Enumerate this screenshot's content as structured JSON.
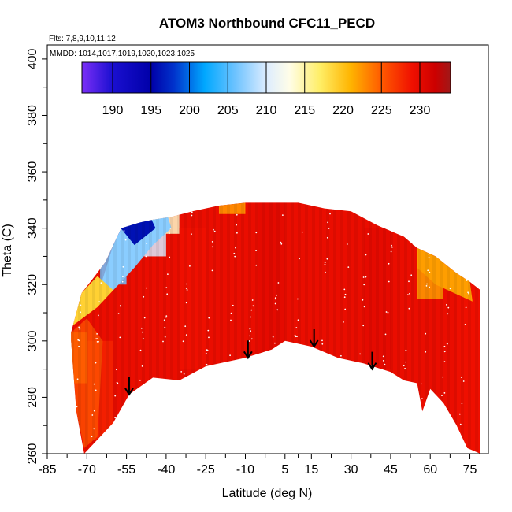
{
  "chart_data": {
    "type": "heatmap",
    "title": "ATOM3 Northbound CFC11_PECD",
    "flights_note": "Flts: 7,8,9,10,11,12",
    "dates_note": "MMDD: 1014,1017,1019,1020,1023,1025",
    "xlabel": "Latitude (deg N)",
    "ylabel": "Theta (C)",
    "xlim": [
      -85,
      82
    ],
    "ylim": [
      260,
      405
    ],
    "x_ticks": [
      -85,
      -70,
      -55,
      -40,
      -25,
      -10,
      5,
      15,
      30,
      45,
      60,
      75
    ],
    "y_ticks": [
      260,
      280,
      300,
      320,
      340,
      360,
      380,
      400
    ],
    "colorbar": {
      "min": 186,
      "max": 234,
      "tick_values": [
        190,
        195,
        200,
        205,
        210,
        215,
        220,
        225,
        230
      ],
      "tick_labels": [
        "190",
        "195",
        "200",
        "205",
        "210",
        "215",
        "220",
        "225",
        "230"
      ],
      "stops": [
        [
          186,
          "#7b2ff7"
        ],
        [
          190,
          "#1a0fd0"
        ],
        [
          195,
          "#0000a8"
        ],
        [
          198,
          "#0033cc"
        ],
        [
          202,
          "#00a8ff"
        ],
        [
          206,
          "#6ec3ff"
        ],
        [
          210,
          "#dcecff"
        ],
        [
          213,
          "#fffde8"
        ],
        [
          217,
          "#ffee66"
        ],
        [
          221,
          "#ffb400"
        ],
        [
          225,
          "#ff5a00"
        ],
        [
          229,
          "#f01000"
        ],
        [
          232,
          "#cc0000"
        ],
        [
          234,
          "#a01818"
        ]
      ]
    },
    "data_envelope": {
      "upper_theta": [
        [
          -76,
          303
        ],
        [
          -72,
          317
        ],
        [
          -67,
          323
        ],
        [
          -63,
          328
        ],
        [
          -60,
          334
        ],
        [
          -57,
          340
        ],
        [
          -50,
          342
        ],
        [
          -45,
          343
        ],
        [
          -38,
          344
        ],
        [
          -30,
          346
        ],
        [
          -20,
          348
        ],
        [
          -10,
          349
        ],
        [
          0,
          349
        ],
        [
          10,
          349
        ],
        [
          20,
          347
        ],
        [
          30,
          346
        ],
        [
          40,
          341
        ],
        [
          50,
          337
        ],
        [
          55,
          333
        ],
        [
          62,
          330
        ],
        [
          70,
          324
        ],
        [
          75,
          321
        ],
        [
          79,
          318
        ]
      ],
      "lower_theta": [
        [
          -76,
          300
        ],
        [
          -74,
          275
        ],
        [
          -71,
          260
        ],
        [
          -66,
          265
        ],
        [
          -60,
          271
        ],
        [
          -54,
          281
        ],
        [
          -45,
          287
        ],
        [
          -35,
          286
        ],
        [
          -25,
          291
        ],
        [
          -10,
          294
        ],
        [
          0,
          297
        ],
        [
          5,
          300
        ],
        [
          10,
          299
        ],
        [
          15,
          298
        ],
        [
          25,
          294
        ],
        [
          35,
          292
        ],
        [
          45,
          289
        ],
        [
          50,
          286
        ],
        [
          55,
          285
        ],
        [
          57,
          275
        ],
        [
          60,
          283
        ],
        [
          65,
          278
        ],
        [
          70,
          270
        ],
        [
          74,
          262
        ],
        [
          79,
          260
        ]
      ],
      "sample_values": [
        {
          "lat": -75,
          "theta_min": 285,
          "theta_max": 303,
          "value": 224
        },
        {
          "lat": -65,
          "theta_min": 265,
          "theta_max": 300,
          "value": 228
        },
        {
          "lat": -60,
          "theta_min": 320,
          "theta_max": 334,
          "value": 206
        },
        {
          "lat": -55,
          "theta_min": 332,
          "theta_max": 342,
          "value": 196
        },
        {
          "lat": -45,
          "theta_min": 330,
          "theta_max": 343,
          "value": 210
        },
        {
          "lat": -40,
          "theta_min": 338,
          "theta_max": 345,
          "value": 214
        },
        {
          "lat": -30,
          "theta_min": 290,
          "theta_max": 340,
          "value": 229
        },
        {
          "lat": 0,
          "theta_min": 295,
          "theta_max": 349,
          "value": 230
        },
        {
          "lat": 40,
          "theta_min": 290,
          "theta_max": 340,
          "value": 230
        },
        {
          "lat": 60,
          "theta_min": 315,
          "theta_max": 330,
          "value": 222
        },
        {
          "lat": 75,
          "theta_min": 260,
          "theta_max": 320,
          "value": 229
        }
      ]
    },
    "tropopause_arrows": [
      {
        "lat": -54,
        "theta": 281
      },
      {
        "lat": -9,
        "theta": 294
      },
      {
        "lat": 16,
        "theta": 298
      },
      {
        "lat": 38,
        "theta": 290
      }
    ]
  }
}
